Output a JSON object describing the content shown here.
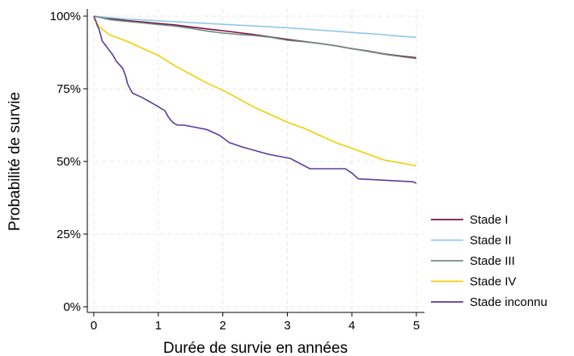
{
  "chart_data": {
    "type": "line",
    "title": "",
    "xlabel": "Durée de survie en années",
    "ylabel": "Probabilité de survie",
    "xlim": [
      0,
      5
    ],
    "ylim": [
      0,
      100
    ],
    "xticks": [
      0,
      1,
      2,
      3,
      4,
      5
    ],
    "xtick_labels": [
      "0",
      "1",
      "2",
      "3",
      "4",
      "5"
    ],
    "yticks": [
      0,
      25,
      50,
      75,
      100
    ],
    "ytick_labels": [
      "0%",
      "25%",
      "50%",
      "75%",
      "100%"
    ],
    "grid": true,
    "legend_position": "right",
    "series": [
      {
        "name": "Stade I",
        "color": "#7b0c3e",
        "x": [
          0,
          0.25,
          0.5,
          0.75,
          1,
          1.25,
          1.5,
          1.75,
          2,
          2.25,
          2.5,
          2.75,
          3,
          3.25,
          3.5,
          3.75,
          4,
          4.25,
          4.5,
          4.75,
          5
        ],
        "y": [
          100,
          99.2,
          98.5,
          98,
          97.5,
          97,
          96.3,
          95.6,
          95,
          94.3,
          93.6,
          92.8,
          92,
          91.3,
          90.6,
          89.8,
          88.8,
          88,
          87,
          86.3,
          85.7
        ]
      },
      {
        "name": "Stade II",
        "color": "#90c8e8",
        "x": [
          0,
          0.25,
          0.5,
          0.75,
          1,
          1.25,
          1.5,
          1.75,
          2,
          2.25,
          2.5,
          2.75,
          3,
          3.25,
          3.5,
          3.75,
          4,
          4.25,
          4.5,
          4.75,
          5
        ],
        "y": [
          100,
          99.5,
          99,
          98.7,
          98.4,
          98.1,
          97.8,
          97.5,
          97.2,
          96.9,
          96.6,
          96.3,
          96,
          95.6,
          95.2,
          94.8,
          94.4,
          94,
          93.6,
          93.1,
          92.7
        ]
      },
      {
        "name": "Stade III",
        "color": "#6e8b82",
        "x": [
          0,
          0.25,
          0.5,
          0.75,
          1,
          1.25,
          1.5,
          1.75,
          2,
          2.25,
          2.5,
          2.75,
          3,
          3.25,
          3.5,
          3.75,
          4,
          4.25,
          4.5,
          4.75,
          5
        ],
        "y": [
          100,
          98.8,
          98.2,
          97.7,
          97.1,
          96.6,
          95.8,
          94.9,
          94.2,
          93.7,
          93.3,
          92.7,
          91.7,
          91.2,
          90.6,
          89.8,
          88.8,
          87.9,
          86.9,
          86.1,
          85.4
        ]
      },
      {
        "name": "Stade IV",
        "color": "#f5cd00",
        "x": [
          0,
          0.1,
          0.25,
          0.5,
          0.75,
          1,
          1.25,
          1.5,
          1.75,
          2,
          2.25,
          2.5,
          2.75,
          3,
          3.25,
          3.5,
          3.75,
          4,
          4.25,
          4.5,
          4.75,
          5
        ],
        "y": [
          99,
          96,
          93.5,
          91.5,
          89,
          86.5,
          83,
          80,
          77,
          74.5,
          71.5,
          68.5,
          66,
          63.5,
          61.5,
          59,
          56.5,
          54.5,
          52.5,
          50.5,
          49.5,
          48.5
        ]
      },
      {
        "name": "Stade inconnu",
        "color": "#5a3a9a",
        "x": [
          0,
          0.03,
          0.05,
          0.08,
          0.1,
          0.13,
          0.18,
          0.25,
          0.3,
          0.35,
          0.45,
          0.5,
          0.52,
          0.55,
          0.6,
          0.75,
          0.95,
          1.1,
          1.15,
          1.2,
          1.25,
          1.3,
          1.4,
          1.75,
          1.95,
          2.1,
          2.3,
          2.7,
          3.05,
          3.35,
          3.5,
          3.9,
          4.0,
          4.05,
          4.1,
          4.95,
          5.0
        ],
        "y": [
          100,
          98.5,
          97,
          95.5,
          94,
          91.5,
          90,
          88,
          86.5,
          84.5,
          82,
          79,
          77,
          75.5,
          73.5,
          72,
          69.5,
          67.5,
          65.5,
          64,
          63,
          62.5,
          62.5,
          61,
          59,
          56.5,
          55,
          52.5,
          51,
          47.5,
          47.5,
          47.5,
          46,
          45,
          44,
          43,
          42.5
        ]
      }
    ]
  }
}
